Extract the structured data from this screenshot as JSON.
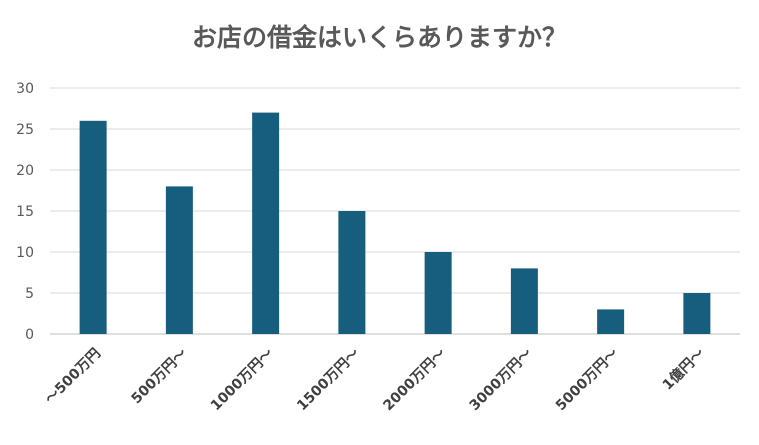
{
  "chart_data": {
    "type": "bar",
    "title": "お店の借金はいくらありますか？",
    "categories": [
      "～500万円",
      "500万円～",
      "1000万円～",
      "1500万円～",
      "2000万円～",
      "3000万円～",
      "5000万円～",
      "1億円～"
    ],
    "values": [
      26,
      18,
      27,
      15,
      10,
      8,
      3,
      5
    ],
    "yticks": [
      "0",
      "5",
      "10",
      "15",
      "20",
      "25",
      "30"
    ],
    "ylim": [
      0,
      30
    ],
    "grid": true,
    "bar_color": "#175e7e",
    "gridline_color": "#d9d9d9"
  }
}
